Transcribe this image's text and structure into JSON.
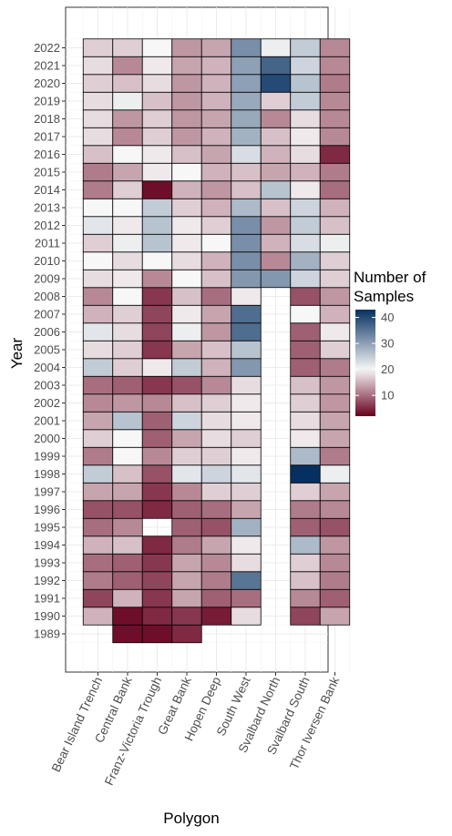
{
  "chart_data": {
    "type": "heatmap",
    "xlabel": "Polygon",
    "ylabel": "Year",
    "legend": {
      "title_line1": "Number of",
      "title_line2": "Samples",
      "ticks": [
        10,
        20,
        30,
        40
      ],
      "min": 2,
      "max": 43,
      "mid": 20,
      "low_color": "#67001f",
      "mid_color": "#f7f7f7",
      "high_color": "#053061",
      "placement": "right"
    },
    "categories": [
      "Bear Island Trench",
      "Central Bank",
      "Franz-Victoria Trough",
      "Great Bank",
      "Hopen Deep",
      "South West",
      "Svalbard North",
      "Svalbard South",
      "Thor Iversen Bank"
    ],
    "years": [
      1989,
      1990,
      1991,
      1992,
      1993,
      1994,
      1995,
      1996,
      1997,
      1998,
      1999,
      2000,
      2001,
      2002,
      2003,
      2004,
      2005,
      2006,
      2007,
      2008,
      2009,
      2010,
      2011,
      2012,
      2013,
      2014,
      2015,
      2016,
      2017,
      2018,
      2019,
      2020,
      2021,
      2022
    ],
    "values": [
      [
        null,
        3,
        3,
        5,
        null,
        null,
        null,
        null,
        null
      ],
      [
        15,
        3,
        5,
        6,
        4,
        18,
        null,
        7,
        14
      ],
      [
        7,
        15,
        6,
        14,
        9,
        10,
        null,
        12,
        9
      ],
      [
        11,
        9,
        7,
        14,
        11,
        35,
        null,
        16,
        11
      ],
      [
        10,
        9,
        6,
        14,
        12,
        18,
        null,
        17,
        12
      ],
      [
        15,
        16,
        5,
        11,
        14,
        19,
        null,
        27,
        13
      ],
      [
        10,
        12,
        null,
        9,
        8,
        28,
        null,
        9,
        8
      ],
      [
        8,
        8,
        5,
        9,
        10,
        14,
        null,
        11,
        12
      ],
      [
        14,
        14,
        6,
        12,
        17,
        17,
        null,
        17,
        14
      ],
      [
        25,
        16,
        8,
        22,
        24,
        22,
        null,
        43,
        21
      ],
      [
        11,
        20,
        12,
        17,
        17,
        19,
        null,
        27,
        11
      ],
      [
        17,
        20,
        9,
        14,
        18,
        17,
        null,
        19,
        14
      ],
      [
        14,
        26,
        9,
        24,
        18,
        19,
        null,
        18,
        14
      ],
      [
        12,
        13,
        12,
        16,
        17,
        19,
        null,
        17,
        13
      ],
      [
        10,
        9,
        6,
        8,
        12,
        18,
        null,
        16,
        13
      ],
      [
        25,
        17,
        19,
        25,
        15,
        31,
        null,
        9,
        11
      ],
      [
        18,
        17,
        6,
        14,
        16,
        26,
        null,
        9,
        17
      ],
      [
        22,
        18,
        7,
        21,
        13,
        36,
        null,
        9,
        19
      ],
      [
        15,
        17,
        7,
        19,
        14,
        36,
        null,
        20,
        15
      ],
      [
        12,
        20,
        6,
        16,
        10,
        19,
        null,
        8,
        13
      ],
      [
        18,
        19,
        12,
        20,
        16,
        31,
        31,
        24,
        17
      ],
      [
        20,
        18,
        20,
        18,
        15,
        32,
        12,
        28,
        17
      ],
      [
        17,
        21,
        26,
        19,
        20,
        32,
        15,
        23,
        21
      ],
      [
        22,
        19,
        26,
        19,
        17,
        32,
        13,
        25,
        16
      ],
      [
        20,
        20,
        25,
        17,
        15,
        27,
        16,
        24,
        15
      ],
      [
        11,
        17,
        3,
        15,
        13,
        16,
        26,
        19,
        10
      ],
      [
        11,
        14,
        19,
        20,
        15,
        16,
        14,
        15,
        11
      ],
      [
        16,
        20,
        19,
        16,
        14,
        23,
        15,
        18,
        5
      ],
      [
        18,
        12,
        17,
        13,
        15,
        28,
        16,
        19,
        12
      ],
      [
        18,
        13,
        17,
        13,
        14,
        29,
        12,
        18,
        12
      ],
      [
        18,
        21,
        16,
        13,
        15,
        29,
        17,
        25,
        12
      ],
      [
        17,
        16,
        18,
        13,
        15,
        30,
        40,
        26,
        11
      ],
      [
        18,
        12,
        19,
        14,
        15,
        30,
        37,
        24,
        12
      ],
      [
        17,
        17,
        20,
        13,
        14,
        32,
        21,
        25,
        12
      ]
    ]
  }
}
